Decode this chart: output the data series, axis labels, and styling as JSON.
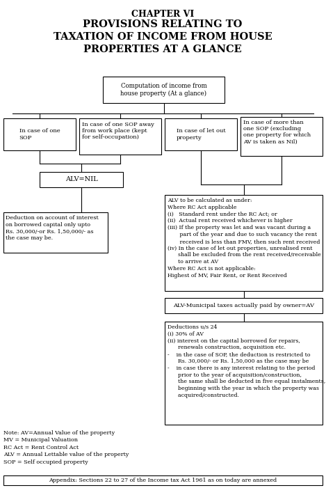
{
  "title1": "CHAPTER VI",
  "title2": "PROVISIONS RELATING TO\nTAXATION OF INCOME FROM HOUSE\nPROPERTIES AT A GLANCE",
  "bg_color": "#ffffff",
  "top_box": {
    "text": "Computation of income from\nhouse property (At a glance)"
  },
  "box1": {
    "text": "In case of one\nSOP"
  },
  "box2": {
    "text": "In case of one SOP away\nfrom work place (kept\nfor self-occupation)"
  },
  "box3": {
    "text": "In case of let out\nproperty"
  },
  "box4": {
    "text": "In case of more than\none SOP (excluding\none property for which\nAV is taken as Nil)"
  },
  "alv_nil": {
    "text": "ALV=NIL"
  },
  "alv_calc": {
    "text": "ALV to be calculated as under:\nWhere RC Act applicable\n(i)   Standard rent under the RC Act; or\n(ii)  Actual rent received whichever is higher\n(iii) If the property was let and was vacant during a\n       part of the year and due to such vacancy the rent\n       received is less than FMV, then such rent received\n(iv) In the case of let out properties, unrealised rent\n      shall be excluded from the rent received/receivable\n      to arrive at AV\nWhere RC Act is not applicable:\nHighest of MV, Fair Rent, or Rent Received"
  },
  "deduct_int": {
    "text": "Deduction on account of interest\non borrowed capital only upto\nRs. 30,000/-or Rs. 1,50,000/- as\nthe case may be."
  },
  "alv_mun": {
    "text": "ALV-Municipal taxes actually paid by owner=AV"
  },
  "deduct_24": {
    "text": "Deductions u/s 24\n(i) 30% of AV\n(ii) interest on the capital borrowed for repairs,\n      renewals construction, acquisition etc.\n-    in the case of SOP, the deduction is restricted to\n      Rs. 30,000/- or Rs. 1,50,000 as the case may be\n-    in case there is any interest relating to the period\n      prior to the year of acquisition/construction,\n      the same shall be deducted in five equal instalments,\n      beginning with the year in which the property was\n      acquired/constructed."
  },
  "notes": "Note: AV=Annual Value of the property\nMV = Municipal Valuation\nRC Act = Rent Control Act\nALV = Annual Lettable value of the property\nSOP = Self occupied property",
  "appendix": "Appendix: Sections 22 to 27 of the Income tax Act 1961 as on today are annexed"
}
